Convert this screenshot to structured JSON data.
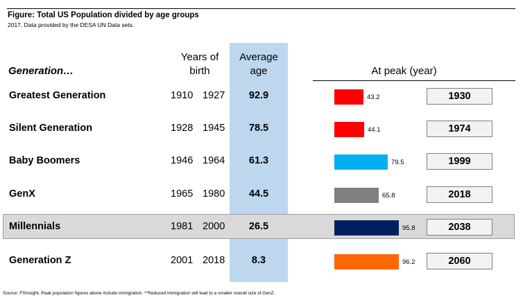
{
  "figure": {
    "title": "Figure: Total US Population divided by age groups",
    "subtitle": "2017. Data provided by the DESA UN Data sets."
  },
  "headers": {
    "generation": "Generation…",
    "years_line1": "Years of",
    "years_line2": "birth",
    "avg_line1": "Average",
    "avg_line2": "age",
    "peak": "At peak (year)"
  },
  "colors": {
    "average_column": "#bdd7ee",
    "highlight_band": "#d9d9d9"
  },
  "chart_data": {
    "type": "table",
    "columns": [
      "Generation…",
      "Years of birth",
      "Average age",
      "At peak (year)"
    ],
    "bar_max": 96.2,
    "rows": [
      {
        "name": "Greatest Generation",
        "start": "1910",
        "end": "1927",
        "avg": "92.9",
        "peak_value": 43.2,
        "peak_label": "43.2",
        "peak_year": "1930",
        "color": "#ff0000"
      },
      {
        "name": "Silent Generation",
        "start": "1928",
        "end": "1945",
        "avg": "78.5",
        "peak_value": 44.1,
        "peak_label": "44.1",
        "peak_year": "1974",
        "color": "#ff0000"
      },
      {
        "name": "Baby Boomers",
        "start": "1946",
        "end": "1964",
        "avg": "61.3",
        "peak_value": 79.5,
        "peak_label": "79.5",
        "peak_year": "1999",
        "color": "#00b0f0"
      },
      {
        "name": "GenX",
        "start": "1965",
        "end": "1980",
        "avg": "44.5",
        "peak_value": 65.8,
        "peak_label": "65.8",
        "peak_year": "2018",
        "color": "#808080"
      },
      {
        "name": "Millennials",
        "start": "1981",
        "end": "2000",
        "avg": "26.5",
        "peak_value": 95.8,
        "peak_label": "95.8",
        "peak_year": "2038",
        "color": "#002060"
      },
      {
        "name": "Generation Z",
        "start": "2001",
        "end": "2018",
        "avg": "8.3",
        "peak_value": 96.2,
        "peak_label": "96.2",
        "peak_year": "2060",
        "color": "#ff6600"
      }
    ]
  },
  "source": "Source: FSInsight.  Peak population figures above include immigration.  **Reduced immigration will lead to a smaller overall size of GenZ."
}
